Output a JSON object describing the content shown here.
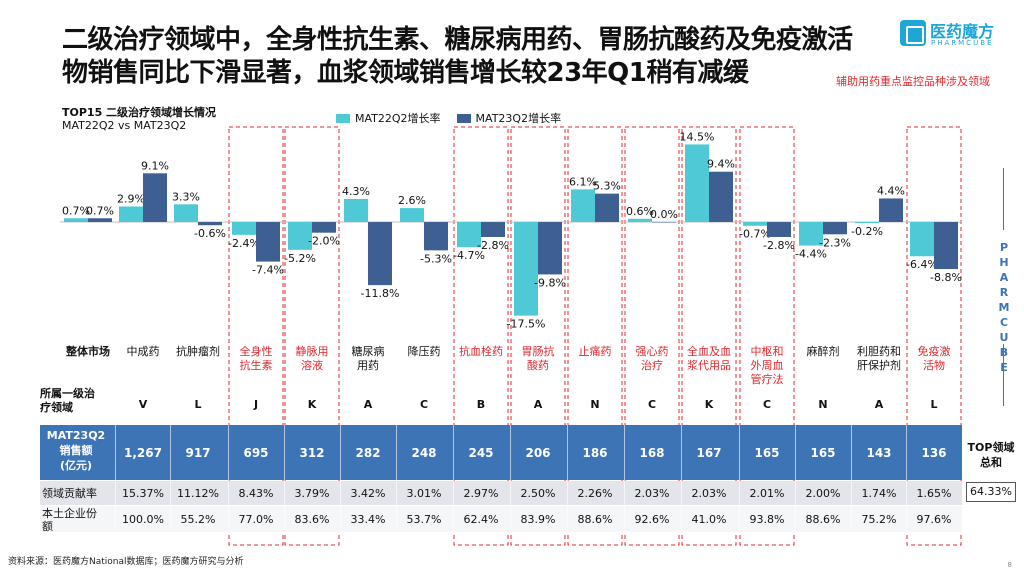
{
  "header": {
    "title_line1": "二级治疗领域中，全身性抗生素、糖尿病用药、胃肠抗酸药及免疫激活",
    "title_line2": "物销售同比下滑显著，血浆领域销售增长较23年Q1稍有减缓",
    "note": "辅助用药重点监控品种涉及领域"
  },
  "logo": {
    "name_cn": "医药魔方",
    "name_en": "PHARMCUBE",
    "icon": "pharmcube-cube-icon"
  },
  "side_brand": {
    "part1": "PHARM",
    "part2": "CUBE"
  },
  "colors": {
    "mat22": "#4fc9d6",
    "mat23": "#3d5f91",
    "highlight": "#e0292f",
    "band": "#3d74b5"
  },
  "chart_data": {
    "type": "bar",
    "title": "TOP15 二级治疗领域增长情况",
    "subtitle": "MAT22Q2 vs MAT23Q2",
    "categories": [
      "整体市场",
      "中成药",
      "抗肿瘤剂",
      "全身性抗生素",
      "静脉用溶液",
      "糖尿病用药",
      "降压药",
      "抗血栓药",
      "胃肠抗酸药",
      "止痛药",
      "强心药治疗",
      "全血及血浆代用品",
      "中枢和外周血管疗法",
      "麻醉剂",
      "利胆药和肝保护剂",
      "免疫激活物"
    ],
    "category_labels": [
      [
        "整体市场"
      ],
      [
        "中成药"
      ],
      [
        "抗肿瘤剂"
      ],
      [
        "全身性",
        "抗生素"
      ],
      [
        "静脉用",
        "溶液"
      ],
      [
        "糖尿病",
        "用药"
      ],
      [
        "降压药"
      ],
      [
        "抗血栓药"
      ],
      [
        "胃肠抗",
        "酸药"
      ],
      [
        "止痛药"
      ],
      [
        "强心药",
        "治疗"
      ],
      [
        "全血及血",
        "浆代用品"
      ],
      [
        "中枢和",
        "外周血",
        "管疗法"
      ],
      [
        "麻醉剂"
      ],
      [
        "利胆药和",
        "肝保护剂"
      ],
      [
        "免疫激",
        "活物"
      ]
    ],
    "highlighted": [
      false,
      false,
      false,
      true,
      true,
      false,
      false,
      true,
      true,
      true,
      true,
      true,
      true,
      false,
      false,
      true
    ],
    "series": [
      {
        "name": "MAT22Q2增长率",
        "values": [
          0.7,
          2.9,
          3.3,
          -2.4,
          -5.2,
          4.3,
          2.6,
          -4.7,
          -17.5,
          6.1,
          0.6,
          14.5,
          -0.7,
          -4.4,
          -0.2,
          -6.4
        ],
        "labels": [
          "0.7%",
          "2.9%",
          "3.3%",
          "-2.4%",
          "-5.2%",
          "4.3%",
          "2.6%",
          "-4.7%",
          "-17.5%",
          "6.1%",
          "0.6%",
          "14.5%",
          "-0.7%",
          "-4.4%",
          "-0.2%",
          "-6.4%"
        ]
      },
      {
        "name": "MAT23Q2增长率",
        "values": [
          0.7,
          9.1,
          -0.6,
          -7.4,
          -2.0,
          -11.8,
          -5.3,
          -2.8,
          -9.8,
          5.3,
          0.0,
          9.4,
          -2.8,
          -2.3,
          4.4,
          -8.8
        ],
        "labels": [
          "0.7%",
          "9.1%",
          "-0.6%",
          "-7.4%",
          "-2.0%",
          "-11.8%",
          "-5.3%",
          "-2.8%",
          "-9.8%",
          "5.3%",
          "0.0%",
          "9.4%",
          "-2.8%",
          "-2.3%",
          "4.4%",
          "-8.8%"
        ]
      }
    ],
    "legend_position": "top",
    "gridlines": false
  },
  "table": {
    "domain_label": [
      "所属一级治",
      "疗领域"
    ],
    "domains": [
      "V",
      "L",
      "J",
      "K",
      "A",
      "C",
      "B",
      "A",
      "N",
      "C",
      "K",
      "C",
      "N",
      "A",
      "L"
    ],
    "sales_label": [
      "MAT23Q2",
      "销售额",
      "(亿元)"
    ],
    "sales": [
      "1,267",
      "917",
      "695",
      "312",
      "282",
      "248",
      "245",
      "206",
      "186",
      "168",
      "167",
      "165",
      "165",
      "143",
      "136"
    ],
    "contribution_label": "领域贡献率",
    "contribution": [
      "15.37%",
      "11.12%",
      "8.43%",
      "3.79%",
      "3.42%",
      "3.01%",
      "2.97%",
      "2.50%",
      "2.26%",
      "2.03%",
      "2.03%",
      "2.01%",
      "2.00%",
      "1.74%",
      "1.65%"
    ],
    "local_share_label": [
      "本土企业份",
      "额"
    ],
    "local_share": [
      "100.0%",
      "55.2%",
      "77.0%",
      "83.6%",
      "33.4%",
      "53.7%",
      "62.4%",
      "83.9%",
      "88.6%",
      "92.6%",
      "41.0%",
      "93.8%",
      "88.6%",
      "75.2%",
      "97.6%"
    ],
    "top_total_label": [
      "TOP领域",
      "总和"
    ],
    "top_total": "64.33%"
  },
  "footer": {
    "source": "资料来源：医药魔方National数据库；医药魔方研究与分析",
    "page": "8"
  }
}
